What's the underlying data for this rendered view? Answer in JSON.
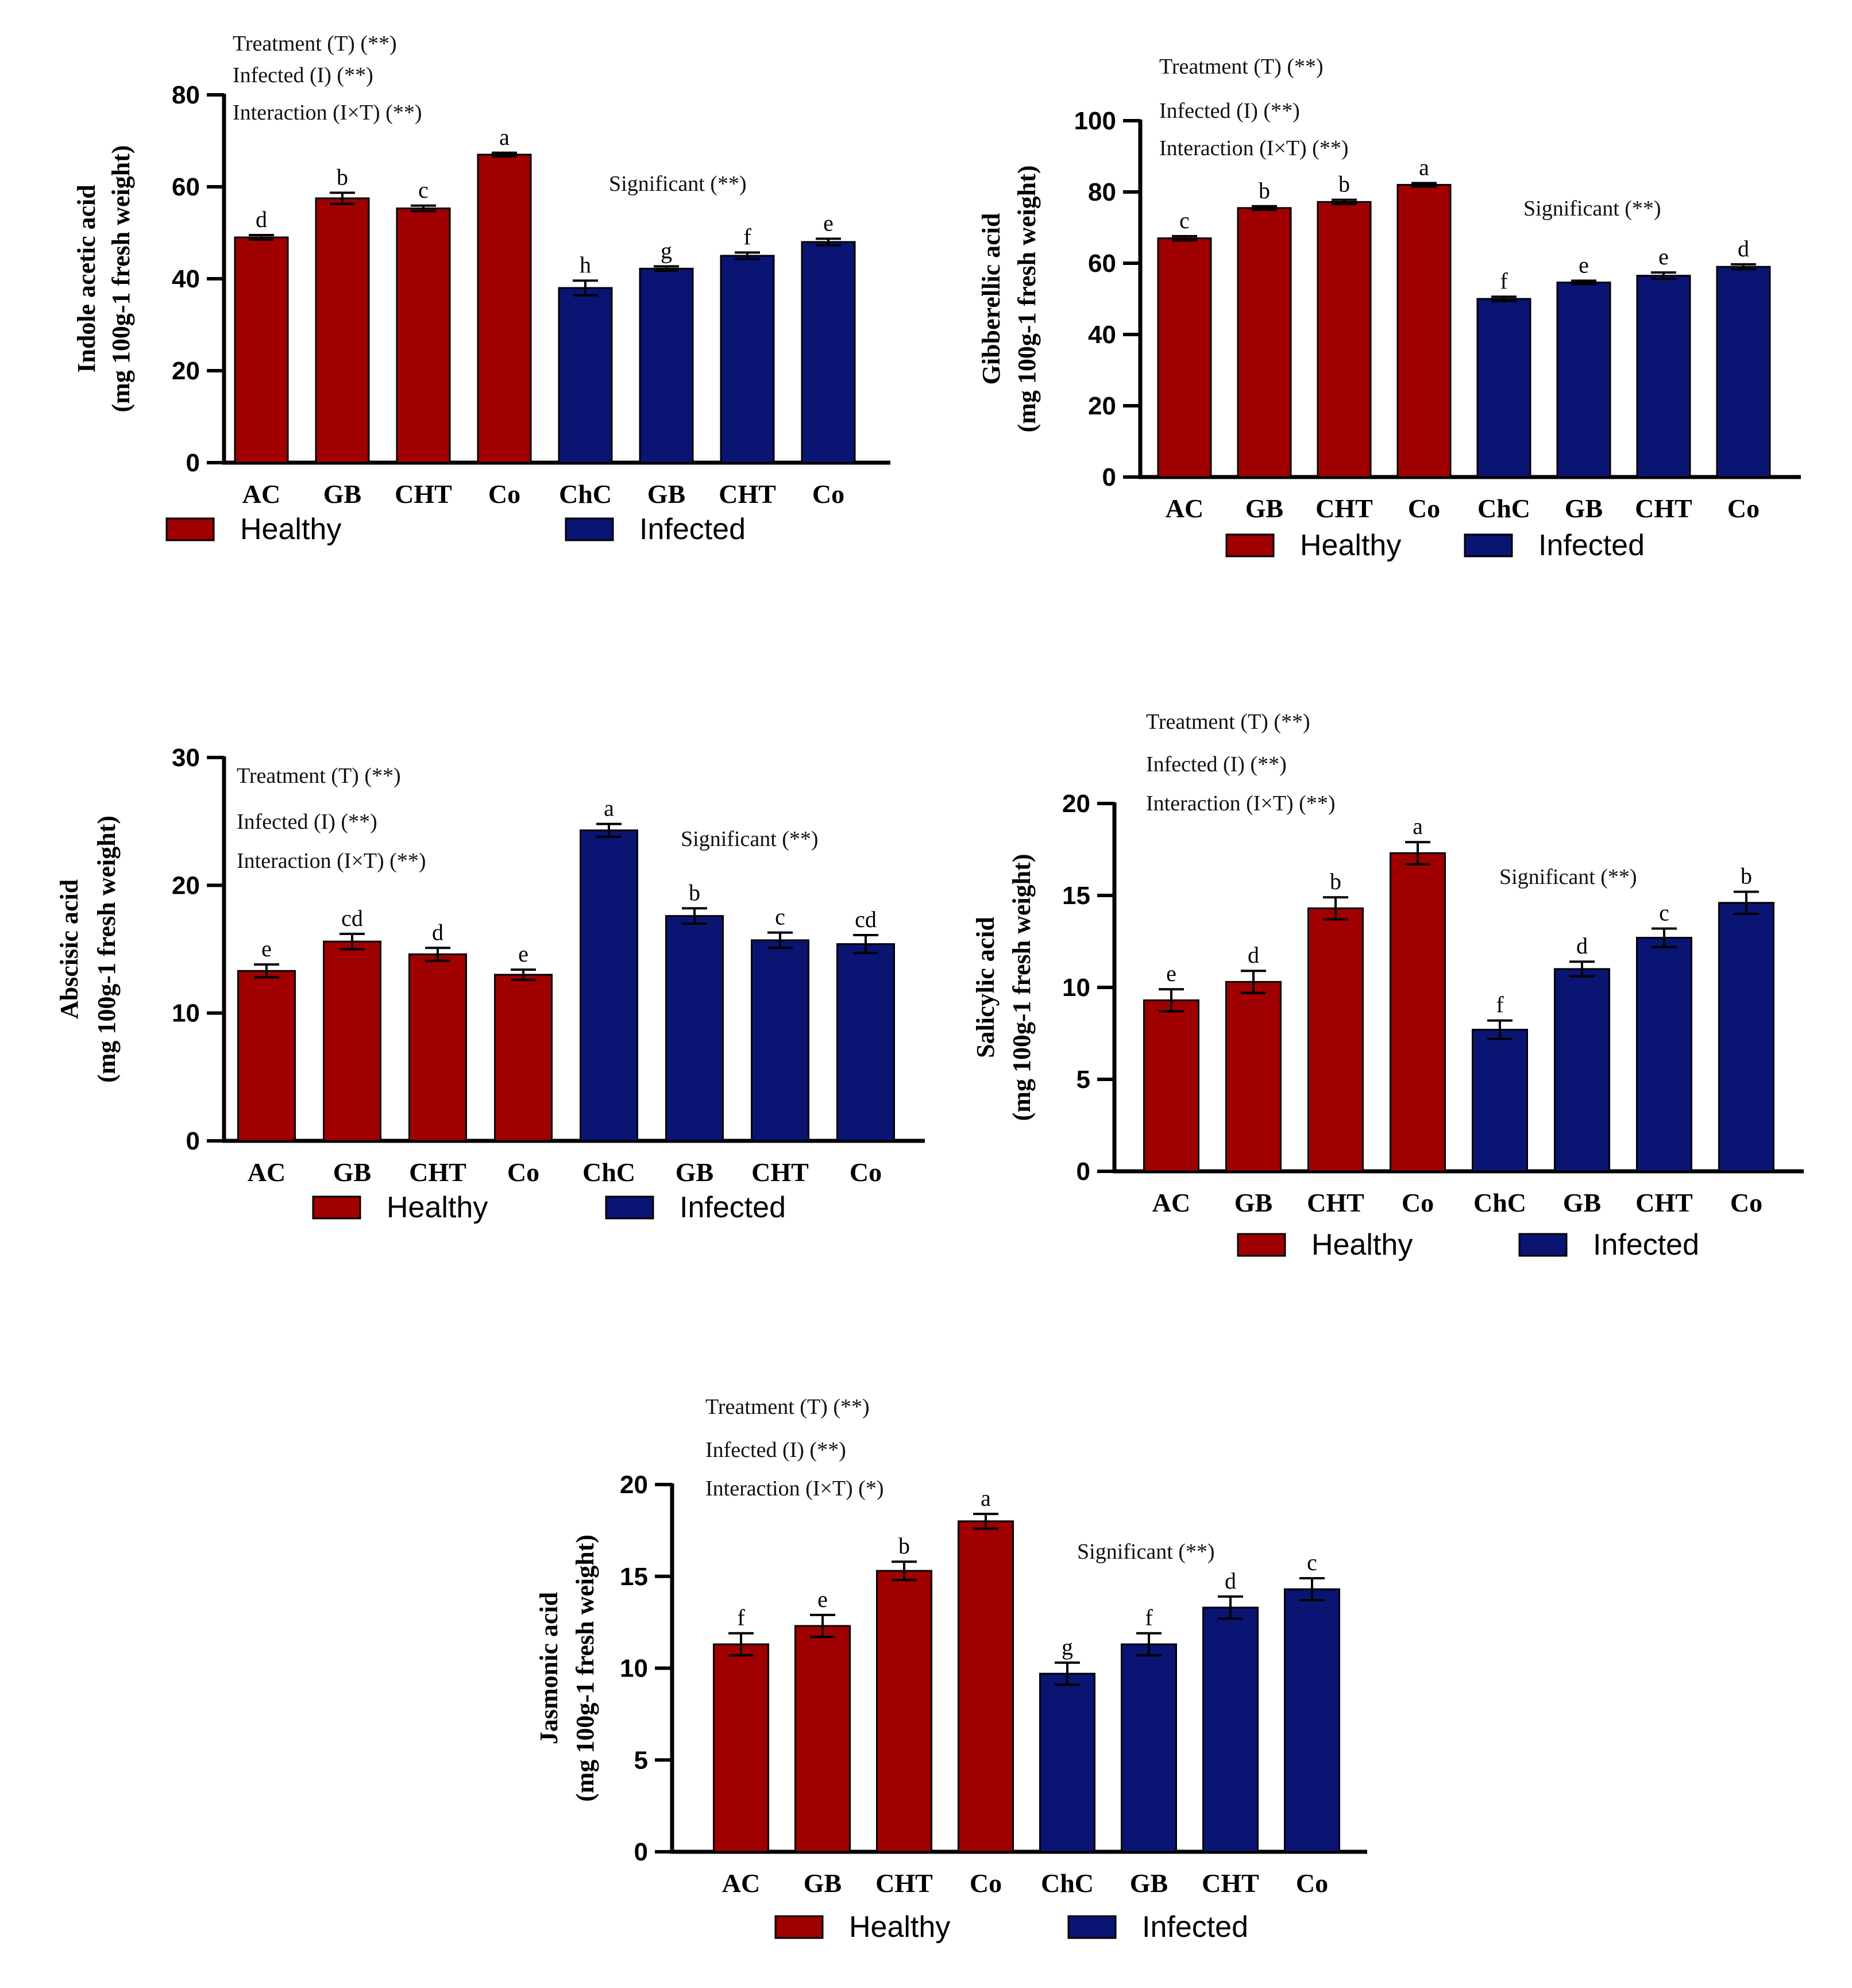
{
  "colors": {
    "healthy": "#a10000",
    "infected": "#0a1573",
    "axis": "#000000"
  },
  "chart_data": [
    {
      "type": "bar",
      "ylabel_main": "Indole acetic acid",
      "ylabel_unit": "(mg 100g-1 fresh weight)",
      "ylim": [
        0,
        80
      ],
      "yticks": [
        0,
        20,
        40,
        60,
        80
      ],
      "categories": [
        "AC",
        "GB",
        "CHT",
        "Co",
        "ChC",
        "GB",
        "CHT",
        "Co"
      ],
      "groups": [
        "Healthy",
        "Healthy",
        "Healthy",
        "Healthy",
        "Infected",
        "Infected",
        "Infected",
        "Infected"
      ],
      "values": [
        49,
        57.5,
        55.3,
        67,
        38,
        42.2,
        45,
        48
      ],
      "errors": [
        0.5,
        1.2,
        0.6,
        0.4,
        1.6,
        0.5,
        0.7,
        0.7
      ],
      "letters": [
        "d",
        "b",
        "c",
        "a",
        "h",
        "g",
        "f",
        "e"
      ],
      "annotations": [
        "Treatment (T) (**)",
        "Infected (I) (**)",
        "Interaction (I×T) (**)"
      ],
      "significance": "Significant (**)",
      "legend": [
        "Healthy",
        "Infected"
      ]
    },
    {
      "type": "bar",
      "ylabel_main": "Gibberellic acid",
      "ylabel_unit": "(mg 100g-1 fresh weight)",
      "ylim": [
        0,
        100
      ],
      "yticks": [
        0,
        20,
        40,
        60,
        80,
        100
      ],
      "categories": [
        "AC",
        "GB",
        "CHT",
        "Co",
        "ChC",
        "GB",
        "CHT",
        "Co"
      ],
      "groups": [
        "Healthy",
        "Healthy",
        "Healthy",
        "Healthy",
        "Infected",
        "Infected",
        "Infected",
        "Infected"
      ],
      "values": [
        67,
        75.5,
        77.2,
        82,
        50,
        54.6,
        56.5,
        59
      ],
      "errors": [
        0.6,
        0.5,
        0.6,
        0.5,
        0.6,
        0.5,
        0.9,
        0.7
      ],
      "letters": [
        "c",
        "b",
        "b",
        "a",
        "f",
        "e",
        "e",
        "d"
      ],
      "annotations": [
        "Treatment (T) (**)",
        "Infected (I) (**)",
        "Interaction (I×T) (**)"
      ],
      "significance": "Significant (**)",
      "legend": [
        "Healthy",
        "Infected"
      ]
    },
    {
      "type": "bar",
      "ylabel_main": "Abscisic acid",
      "ylabel_unit": "(mg 100g-1 fresh weight)",
      "ylim": [
        0,
        30
      ],
      "yticks": [
        0,
        10,
        20,
        30
      ],
      "categories": [
        "AC",
        "GB",
        "CHT",
        "Co",
        "ChC",
        "GB",
        "CHT",
        "Co"
      ],
      "groups": [
        "Healthy",
        "Healthy",
        "Healthy",
        "Healthy",
        "Infected",
        "Infected",
        "Infected",
        "Infected"
      ],
      "values": [
        13.3,
        15.6,
        14.6,
        13,
        24.3,
        17.6,
        15.7,
        15.4
      ],
      "errors": [
        0.5,
        0.6,
        0.5,
        0.4,
        0.5,
        0.6,
        0.6,
        0.7
      ],
      "letters": [
        "e",
        "cd",
        "d",
        "e",
        "a",
        "b",
        "c",
        "cd"
      ],
      "annotations": [
        "Treatment (T) (**)",
        "Infected (I) (**)",
        "Interaction (I×T) (**)"
      ],
      "significance": "Significant (**)",
      "legend": [
        "Healthy",
        "Infected"
      ]
    },
    {
      "type": "bar",
      "ylabel_main": "Salicylic acid",
      "ylabel_unit": "(mg 100g-1 fresh weight)",
      "ylim": [
        0,
        20
      ],
      "yticks": [
        0,
        5,
        10,
        15,
        20
      ],
      "categories": [
        "AC",
        "GB",
        "CHT",
        "Co",
        "ChC",
        "GB",
        "CHT",
        "Co"
      ],
      "groups": [
        "Healthy",
        "Healthy",
        "Healthy",
        "Healthy",
        "Infected",
        "Infected",
        "Infected",
        "Infected"
      ],
      "values": [
        9.3,
        10.3,
        14.3,
        17.3,
        7.7,
        11,
        12.7,
        14.6
      ],
      "errors": [
        0.6,
        0.6,
        0.6,
        0.6,
        0.5,
        0.4,
        0.5,
        0.6
      ],
      "letters": [
        "e",
        "d",
        "b",
        "a",
        "f",
        "d",
        "c",
        "b"
      ],
      "annotations": [
        "Treatment (T) (**)",
        "Infected (I) (**)",
        "Interaction (I×T) (**)"
      ],
      "significance": "Significant (**)",
      "legend": [
        "Healthy",
        "Infected"
      ]
    },
    {
      "type": "bar",
      "ylabel_main": "Jasmonic acid",
      "ylabel_unit": "(mg 100g-1 fresh weight)",
      "ylim": [
        0,
        20
      ],
      "yticks": [
        0,
        5,
        10,
        15,
        20
      ],
      "categories": [
        "AC",
        "GB",
        "CHT",
        "Co",
        "ChC",
        "GB",
        "CHT",
        "Co"
      ],
      "groups": [
        "Healthy",
        "Healthy",
        "Healthy",
        "Healthy",
        "Infected",
        "Infected",
        "Infected",
        "Infected"
      ],
      "values": [
        11.3,
        12.3,
        15.3,
        18,
        9.7,
        11.3,
        13.3,
        14.3
      ],
      "errors": [
        0.6,
        0.6,
        0.5,
        0.4,
        0.6,
        0.6,
        0.6,
        0.6
      ],
      "letters": [
        "f",
        "e",
        "b",
        "a",
        "g",
        "f",
        "d",
        "c"
      ],
      "annotations": [
        "Treatment (T) (**)",
        "Infected (I) (**)",
        "Interaction (I×T) (*)"
      ],
      "significance": "Significant (**)",
      "legend": [
        "Healthy",
        "Infected"
      ]
    }
  ]
}
